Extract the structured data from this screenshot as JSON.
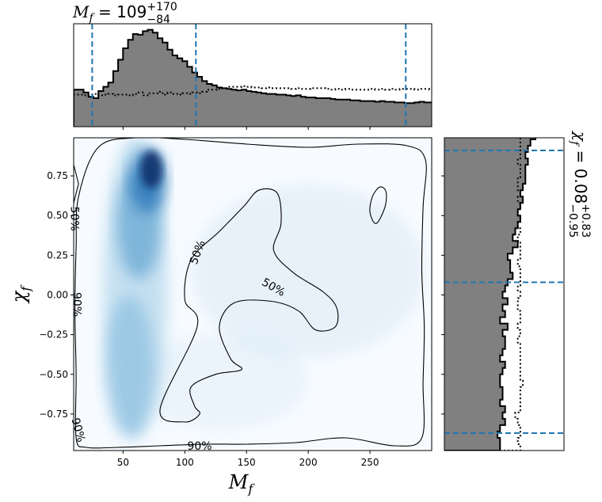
{
  "chart_data": {
    "type": "heatmap",
    "title_top": {
      "symbol": "M",
      "sub": "f",
      "value": "109",
      "upper": "+170",
      "lower": "−84"
    },
    "title_right": {
      "symbol": "χ",
      "sub": "f",
      "value": "0.08",
      "upper": "+0.83",
      "lower": "−0.95"
    },
    "xlabel": {
      "symbol": "M",
      "sub": "f"
    },
    "ylabel": {
      "symbol": "χ",
      "sub": "f"
    },
    "xlim": [
      10,
      300
    ],
    "ylim": [
      -0.98,
      0.99
    ],
    "x_ticks": [
      50,
      100,
      150,
      200,
      250
    ],
    "x_tick_labels": [
      "50",
      "100",
      "150",
      "200",
      "250"
    ],
    "y_ticks": [
      0.75,
      0.5,
      0.25,
      0.0,
      -0.25,
      -0.5,
      -0.75
    ],
    "y_tick_labels": [
      "0.75",
      "0.50",
      "0.25",
      "0.00",
      "−0.25",
      "−0.50",
      "−0.75"
    ],
    "contour_labels": [
      "50%",
      "50%",
      "50%",
      "90%",
      "90%",
      "90%"
    ],
    "x_quantiles": [
      25,
      109,
      279
    ],
    "y_quantiles": [
      -0.87,
      0.08,
      0.91
    ],
    "heat_peak": {
      "x": 73,
      "y": 0.79
    },
    "colors": {
      "posterior": "#808080",
      "quantile": "#1f77b4",
      "heat_max": "#08306b",
      "heat_min": "#f7fbff"
    },
    "mf_hist": {
      "bin_edges_start": 10,
      "bin_width": 4,
      "posterior": [
        52,
        52,
        48,
        42,
        40,
        50,
        56,
        62,
        78,
        94,
        110,
        122,
        130,
        129,
        134,
        136,
        132,
        124,
        118,
        108,
        100,
        96,
        92,
        84,
        76,
        70,
        64,
        60,
        58,
        55,
        54,
        53,
        52,
        51,
        52,
        50,
        49,
        48,
        47,
        46,
        46,
        45,
        45,
        44,
        43,
        44,
        42,
        41,
        41,
        40,
        40,
        40,
        39,
        38,
        38,
        38,
        37,
        37,
        36,
        36,
        36,
        35,
        36,
        35,
        35,
        34,
        34,
        33,
        33,
        34,
        35,
        34,
        34,
        33,
        33,
        33,
        34,
        33,
        35,
        34
      ],
      "prior": [
        45,
        45,
        44,
        45,
        46,
        44,
        45,
        46,
        44,
        45,
        45,
        44,
        46,
        48,
        44,
        47,
        47,
        49,
        45,
        48,
        46,
        45,
        47,
        46,
        48,
        47,
        49,
        52,
        52,
        53,
        54,
        56,
        56,
        56,
        57,
        56,
        55,
        55,
        54,
        55,
        54,
        54,
        54,
        54,
        53,
        54,
        53,
        53,
        54,
        54,
        54,
        53,
        52,
        53,
        52,
        53,
        52,
        52,
        52,
        52,
        53,
        52,
        53,
        52,
        53,
        52,
        53,
        53,
        53,
        52,
        53,
        53,
        52,
        53,
        52,
        53,
        53,
        52,
        53,
        53
      ]
    },
    "chi_hist": {
      "bin_edges_start": -0.98,
      "bin_width": 0.04,
      "posterior": [
        22,
        22,
        21,
        22,
        24,
        23,
        24,
        22,
        23,
        23,
        22,
        22,
        23,
        24,
        22,
        23,
        24,
        24,
        23,
        25,
        22,
        24,
        23,
        25,
        23,
        24,
        25,
        27,
        26,
        26,
        25,
        27,
        29,
        27,
        28,
        29,
        30,
        29,
        30,
        31,
        30,
        31,
        32,
        32,
        32,
        33,
        32,
        33,
        34,
        36,
        38,
        41,
        44
      ],
      "prior": [
        30,
        29,
        30,
        30,
        29,
        28,
        30,
        30,
        30,
        30,
        31,
        30,
        30,
        30,
        30,
        30,
        30,
        29,
        30,
        29,
        30,
        30,
        29,
        29,
        30,
        29,
        30,
        30,
        30,
        29,
        30,
        30,
        30,
        29,
        30,
        29,
        30,
        29,
        30,
        29,
        30,
        29,
        29,
        30,
        30,
        29,
        30,
        30,
        30,
        30,
        30,
        30,
        30
      ]
    }
  }
}
